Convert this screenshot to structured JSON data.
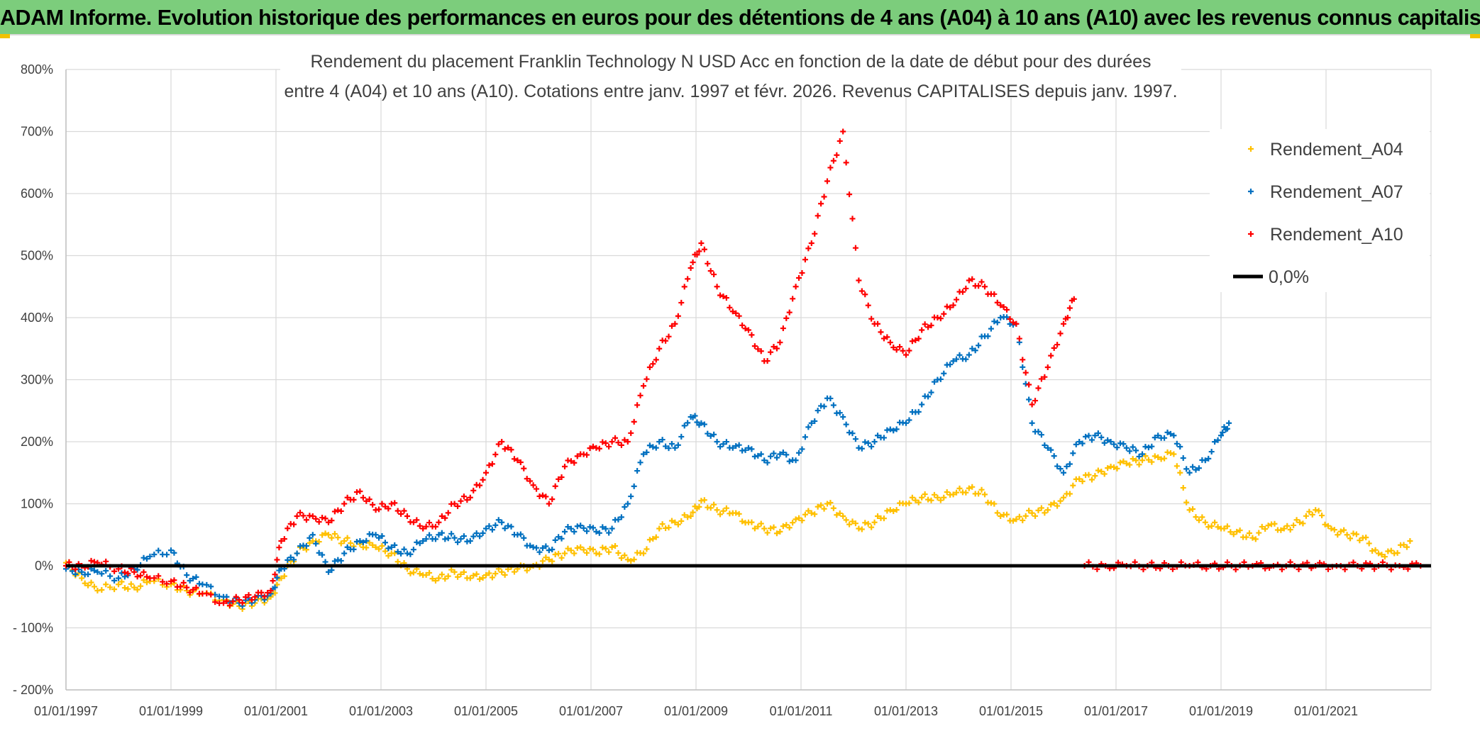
{
  "banner": {
    "title": "ADAM Informe. Evolution historique des performances en euros pour des détentions de 4 ans (A04) à 10 ans (A10) avec les revenus connus capitalisés"
  },
  "chart_data": {
    "type": "scatter",
    "title_lines": [
      "Rendement du placement Franklin Technology N USD Acc en fonction de la date de début pour des durées",
      "entre 4 (A04) et 10 ans (A10). Cotations entre janv. 1997 et févr. 2026. Revenus CAPITALISES depuis janv. 1997."
    ],
    "xlabel": "",
    "ylabel": "",
    "xlim": [
      1997.0,
      2023.0
    ],
    "ylim": [
      -200,
      800
    ],
    "grid": true,
    "legend_position": "top-right",
    "x_ticks": [
      {
        "value": 1997,
        "label": "01/01/1997"
      },
      {
        "value": 1999,
        "label": "01/01/1999"
      },
      {
        "value": 2001,
        "label": "01/01/2001"
      },
      {
        "value": 2003,
        "label": "01/01/2003"
      },
      {
        "value": 2005,
        "label": "01/01/2005"
      },
      {
        "value": 2007,
        "label": "01/01/2007"
      },
      {
        "value": 2009,
        "label": "01/01/2009"
      },
      {
        "value": 2011,
        "label": "01/01/2011"
      },
      {
        "value": 2013,
        "label": "01/01/2013"
      },
      {
        "value": 2015,
        "label": "01/01/2015"
      },
      {
        "value": 2017,
        "label": "01/01/2017"
      },
      {
        "value": 2019,
        "label": "01/01/2019"
      },
      {
        "value": 2021,
        "label": "01/01/2021"
      }
    ],
    "y_ticks": [
      {
        "value": 800,
        "label": "800%"
      },
      {
        "value": 700,
        "label": "700%"
      },
      {
        "value": 600,
        "label": "600%"
      },
      {
        "value": 500,
        "label": "500%"
      },
      {
        "value": 400,
        "label": "400%"
      },
      {
        "value": 300,
        "label": "300%"
      },
      {
        "value": 200,
        "label": "200%"
      },
      {
        "value": 100,
        "label": "100%"
      },
      {
        "value": 0,
        "label": "0%"
      },
      {
        "value": -100,
        "label": "- 100%"
      },
      {
        "value": -200,
        "label": "- 200%"
      }
    ],
    "series": [
      {
        "name": "Rendement_A04",
        "color": "#ffc000",
        "marker": "plus",
        "x": [
          1997.0,
          1997.3,
          1997.6,
          1998.0,
          1998.3,
          1998.6,
          1999.0,
          1999.3,
          1999.6,
          2000.0,
          2000.3,
          2000.6,
          2000.9,
          2001.1,
          2001.4,
          2001.7,
          2002.0,
          2002.3,
          2002.6,
          2002.9,
          2003.2,
          2003.5,
          2003.8,
          2004.1,
          2004.4,
          2004.7,
          2005.0,
          2005.3,
          2005.6,
          2005.9,
          2006.2,
          2006.5,
          2006.8,
          2007.1,
          2007.4,
          2007.7,
          2008.0,
          2008.3,
          2008.6,
          2008.9,
          2009.1,
          2009.4,
          2009.7,
          2010.0,
          2010.3,
          2010.6,
          2010.9,
          2011.2,
          2011.5,
          2011.8,
          2012.1,
          2012.4,
          2012.7,
          2013.0,
          2013.3,
          2013.6,
          2013.9,
          2014.2,
          2014.5,
          2014.8,
          2015.1,
          2015.4,
          2015.7,
          2016.0,
          2016.3,
          2016.6,
          2016.9,
          2017.2,
          2017.5,
          2017.8,
          2018.1,
          2018.4,
          2018.7,
          2019.0,
          2019.3,
          2019.6,
          2019.9,
          2020.2,
          2020.5,
          2020.8,
          2021.1,
          2021.4,
          2021.7,
          2022.0,
          2022.3,
          2022.6
        ],
        "y": [
          5,
          -20,
          -40,
          -30,
          -35,
          -25,
          -30,
          -40,
          -45,
          -55,
          -65,
          -60,
          -50,
          -20,
          20,
          40,
          50,
          40,
          35,
          30,
          20,
          -5,
          -15,
          -20,
          -10,
          -20,
          -15,
          -10,
          -5,
          0,
          10,
          20,
          30,
          20,
          30,
          10,
          20,
          60,
          70,
          80,
          105,
          90,
          85,
          70,
          60,
          55,
          75,
          85,
          100,
          80,
          60,
          70,
          90,
          100,
          110,
          110,
          115,
          125,
          115,
          80,
          75,
          85,
          90,
          110,
          140,
          145,
          160,
          165,
          170,
          175,
          180,
          90,
          70,
          60,
          55,
          45,
          65,
          60,
          70,
          90,
          60,
          50,
          45,
          20,
          20,
          40
        ]
      },
      {
        "name": "Rendement_A07",
        "color": "#0070c0",
        "marker": "plus",
        "x": [
          1997.0,
          1997.3,
          1997.6,
          1998.0,
          1998.3,
          1998.6,
          1999.0,
          1999.3,
          1999.6,
          2000.0,
          2000.3,
          2000.6,
          2000.9,
          2001.1,
          2001.4,
          2001.7,
          2002.0,
          2002.3,
          2002.6,
          2002.9,
          2003.2,
          2003.5,
          2003.8,
          2004.1,
          2004.4,
          2004.7,
          2005.0,
          2005.3,
          2005.6,
          2005.9,
          2006.2,
          2006.5,
          2006.8,
          2007.1,
          2007.4,
          2007.7,
          2008.0,
          2008.3,
          2008.6,
          2008.9,
          2009.1,
          2009.4,
          2009.7,
          2010.0,
          2010.3,
          2010.6,
          2010.9,
          2011.2,
          2011.5,
          2011.8,
          2012.1,
          2012.4,
          2012.7,
          2013.0,
          2013.3,
          2013.6,
          2013.9,
          2014.2,
          2014.5,
          2014.8,
          2015.1,
          2015.4,
          2015.7,
          2016.0,
          2016.3,
          2016.6,
          2016.9,
          2017.2,
          2017.5,
          2017.8,
          2018.1,
          2018.4,
          2018.7,
          2019.0,
          2019.15
        ],
        "y": [
          -5,
          -10,
          -10,
          -20,
          -5,
          15,
          25,
          -15,
          -30,
          -50,
          -60,
          -55,
          -45,
          -5,
          20,
          50,
          -10,
          20,
          40,
          50,
          30,
          20,
          40,
          50,
          45,
          40,
          60,
          70,
          50,
          30,
          25,
          55,
          65,
          55,
          60,
          100,
          180,
          200,
          190,
          240,
          230,
          200,
          190,
          190,
          170,
          180,
          170,
          230,
          270,
          240,
          190,
          200,
          220,
          230,
          260,
          300,
          330,
          340,
          370,
          400,
          390,
          230,
          190,
          150,
          200,
          210,
          200,
          190,
          180,
          210,
          210,
          150,
          170,
          210,
          230
        ]
      },
      {
        "name": "Rendement_A10",
        "color": "#ff0000",
        "marker": "plus",
        "x": [
          1997.0,
          1997.3,
          1997.6,
          1998.0,
          1998.3,
          1998.6,
          1999.0,
          1999.3,
          1999.6,
          2000.0,
          2000.3,
          2000.6,
          2000.9,
          2001.1,
          2001.4,
          2001.7,
          2002.0,
          2002.3,
          2002.6,
          2002.9,
          2003.2,
          2003.5,
          2003.8,
          2004.1,
          2004.4,
          2004.7,
          2005.0,
          2005.3,
          2005.6,
          2005.9,
          2006.2,
          2006.5,
          2006.8,
          2007.1,
          2007.4,
          2007.7,
          2008.0,
          2008.3,
          2008.6,
          2008.9,
          2009.1,
          2009.4,
          2009.7,
          2010.0,
          2010.3,
          2010.6,
          2010.9,
          2011.2,
          2011.5,
          2011.8,
          2012.1,
          2012.4,
          2012.7,
          2013.0,
          2013.3,
          2013.6,
          2013.9,
          2014.2,
          2014.5,
          2014.8,
          2015.1,
          2015.4,
          2015.7,
          2016.0,
          2016.2
        ],
        "y": [
          0,
          0,
          5,
          -5,
          -10,
          -20,
          -25,
          -35,
          -45,
          -60,
          -55,
          -50,
          -40,
          40,
          80,
          80,
          70,
          100,
          120,
          90,
          100,
          80,
          60,
          70,
          100,
          110,
          150,
          200,
          170,
          130,
          100,
          160,
          180,
          190,
          200,
          200,
          290,
          350,
          390,
          480,
          520,
          450,
          410,
          380,
          330,
          360,
          450,
          520,
          620,
          700,
          460,
          390,
          360,
          340,
          380,
          400,
          420,
          460,
          450,
          420,
          390,
          260,
          320,
          390,
          430
        ]
      },
      {
        "name": "0,0%",
        "color": "#000000",
        "marker": "line",
        "x": [
          1997.0,
          2023.0
        ],
        "y": [
          0,
          0
        ]
      },
      {
        "name": "Rendement_A10 (padding)",
        "color": "#ff0000",
        "marker": "plus",
        "legend": false,
        "x": [
          2016.4,
          2016.8,
          2017.2,
          2017.6,
          2018.0,
          2018.4,
          2018.8,
          2019.2,
          2019.6,
          2020.0,
          2020.4,
          2020.8,
          2021.2,
          2021.6,
          2022.0,
          2022.4,
          2022.8
        ],
        "y": [
          0,
          0,
          0,
          0,
          0,
          0,
          0,
          0,
          0,
          0,
          0,
          0,
          0,
          0,
          0,
          0,
          0
        ]
      }
    ]
  }
}
